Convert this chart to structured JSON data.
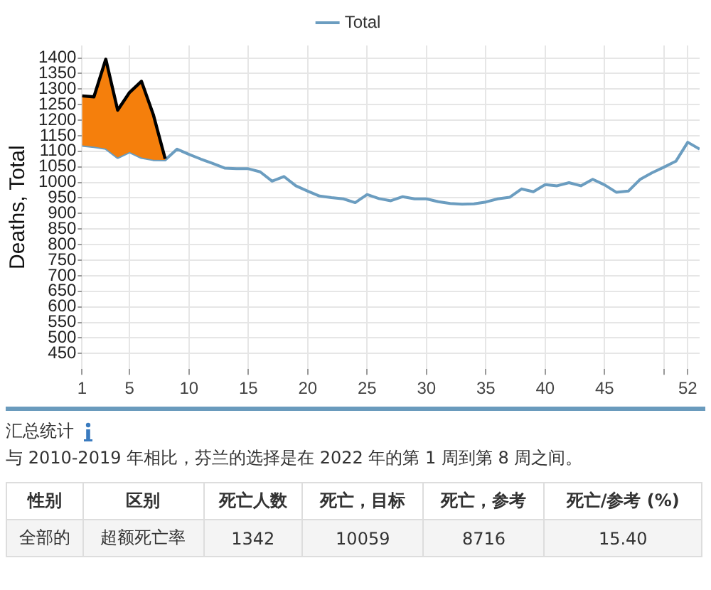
{
  "chart_data": {
    "type": "line",
    "ylabel": "Deaths, Total",
    "legend": "top",
    "grid": true,
    "marker": "none",
    "line_style": "solid",
    "xlim": [
      1,
      53
    ],
    "xticks": [
      1,
      5,
      10,
      15,
      20,
      25,
      30,
      35,
      40,
      45,
      {
        "value": 50,
        "label": null
      },
      52
    ],
    "ylim": [
      400,
      1440
    ],
    "yticks": [
      450,
      500,
      550,
      600,
      650,
      700,
      750,
      800,
      850,
      900,
      950,
      1000,
      1050,
      1100,
      1150,
      1200,
      1250,
      1300,
      1350,
      1400
    ],
    "series": [
      {
        "name": "Total",
        "type": "line",
        "color": "#6b9dc0",
        "x": [
          1,
          2,
          3,
          4,
          5,
          6,
          7,
          8,
          9,
          10,
          11,
          12,
          13,
          14,
          15,
          16,
          17,
          18,
          19,
          20,
          21,
          22,
          23,
          24,
          25,
          26,
          27,
          28,
          29,
          30,
          31,
          32,
          33,
          34,
          35,
          36,
          37,
          38,
          39,
          40,
          41,
          42,
          43,
          44,
          45,
          46,
          47,
          48,
          49,
          50,
          51,
          52,
          53
        ],
        "values": [
          1119,
          1115,
          1109,
          1080,
          1098,
          1080,
          1073,
          1072,
          1107,
          1090,
          1075,
          1061,
          1046,
          1044,
          1044,
          1034,
          1004,
          1019,
          989,
          972,
          956,
          951,
          947,
          935,
          961,
          948,
          941,
          954,
          947,
          947,
          938,
          932,
          930,
          931,
          937,
          947,
          952,
          979,
          970,
          993,
          989,
          999,
          989,
          1010,
          992,
          968,
          972,
          1010,
          1031,
          1049,
          1068,
          1129,
          1107
        ]
      },
      {
        "type": "area",
        "color": "#f57f0c",
        "x": [
          1,
          2,
          3,
          4,
          5,
          6,
          7,
          8
        ],
        "values": [
          1278,
          1275,
          1396,
          1232,
          1289,
          1325,
          1218,
          1076
        ]
      }
    ],
    "annotations": [
      "汇总统计",
      "与 2010-2019 年相比，芬兰的选择是在 2022 年的第 1 周到第 8 周之间。",
      "性别",
      "区别",
      "死亡人数",
      "死亡，目标",
      "死亡，参考",
      "死亡/参考 (%)",
      "全部的",
      "超额死亡率",
      "1342",
      "10059",
      "8716",
      "15.40"
    ]
  }
}
